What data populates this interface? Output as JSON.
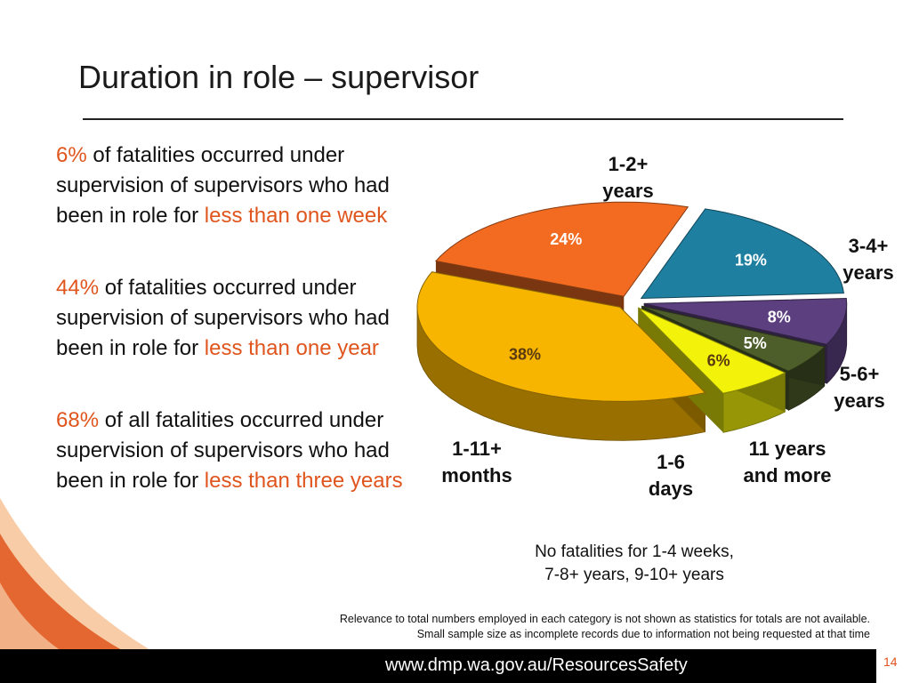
{
  "slide": {
    "title": "Duration in role – supervisor",
    "footer_url": "www.dmp.wa.gov.au/ResourcesSafety",
    "page_number": "14",
    "note_lines": [
      "No fatalities for 1-4 weeks,",
      "7-8+ years, 9-10+ years"
    ],
    "footnote_lines": [
      "Relevance to total numbers employed in each category is not shown as statistics for totals are not available.",
      "Small sample size as incomplete records due to information not being requested at that time"
    ],
    "colors": {
      "accent": "#e0551d",
      "footer": "#000000"
    }
  },
  "bullets": [
    {
      "highlight": "6%",
      "text_a": " of fatalities occurred under supervision of supervisors who had been in role for ",
      "emphasis": "less than one week"
    },
    {
      "highlight": "44%",
      "text_a": " of fatalities occurred under supervision of supervisors who had been in role for ",
      "emphasis": "less than one year"
    },
    {
      "highlight": "68%",
      "text_a": " of all fatalities occurred under supervision of supervisors who had been in role for ",
      "emphasis": "less than three years"
    }
  ],
  "chart_data": {
    "type": "pie",
    "three_d": true,
    "exploded": true,
    "slices": [
      {
        "category": "1-2+\nyears",
        "value": 24,
        "label": "24%",
        "color": "#f26b21"
      },
      {
        "category": "3-4+\nyears",
        "value": 19,
        "label": "19%",
        "color": "#1f7fa0"
      },
      {
        "category": "5-6+\nyears",
        "value": 8,
        "label": "8%",
        "color": "#5b3f7e"
      },
      {
        "category": "11 years\nand more",
        "value": 5,
        "label": "5%",
        "color": "#4e5e2b"
      },
      {
        "category": "1-6\ndays",
        "value": 6,
        "label": "6%",
        "color": "#f2f20a"
      },
      {
        "category": "1-11+\nmonths",
        "value": 38,
        "label": "38%",
        "color": "#f7b500"
      }
    ]
  }
}
